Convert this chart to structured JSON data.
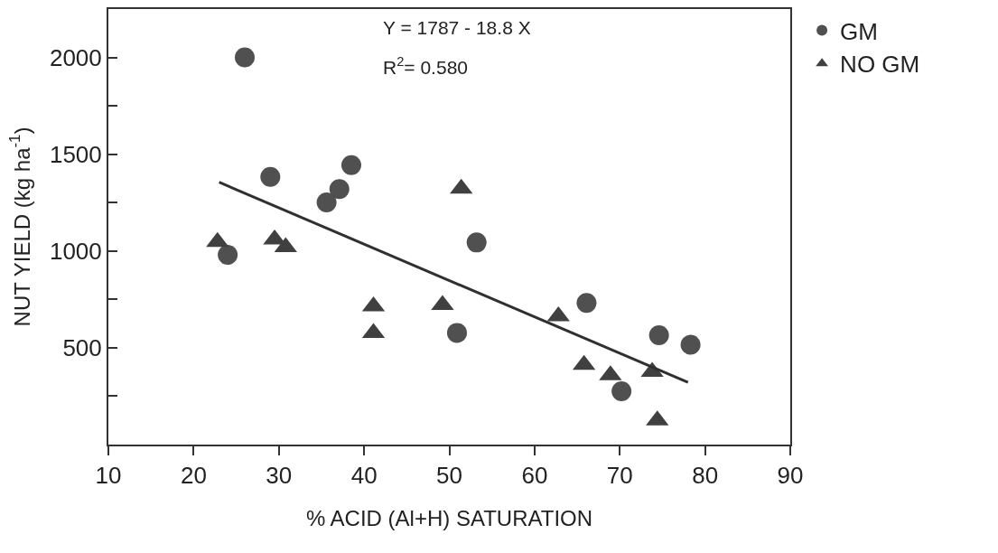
{
  "chart_data": {
    "type": "scatter",
    "xlabel": "% ACID (Al+H) SATURATION",
    "ylabel": "NUT YIELD (kg ha$^{-1}$)",
    "annotations": [
      "Y = 1787 - 18.8 X",
      "R$^{2}$= 0.580"
    ],
    "series": [
      {
        "name": "GM",
        "marker": "circle",
        "color": "#505050",
        "x": [
          26,
          29,
          38.5,
          37.1,
          35.6,
          24,
          53.2,
          50.9,
          66.1,
          74.6,
          78.3,
          70.2
        ],
        "values": [
          2000,
          1383,
          1444,
          1320,
          1251,
          980,
          1044,
          577,
          732,
          565,
          516,
          275
        ]
      },
      {
        "name": "NO GM",
        "marker": "triangle",
        "color": "#404040",
        "x": [
          22.8,
          29.5,
          30.8,
          51.4,
          41.1,
          41.1,
          49.2,
          62.8,
          65.8,
          68.9,
          73.8,
          74.4
        ],
        "values": [
          1047,
          1060,
          1020,
          1322,
          714,
          577,
          721,
          663,
          412,
          358,
          376,
          125
        ]
      },
      {
        "type": "line",
        "color": "#303030",
        "line_style": "solid",
        "marker": "none",
        "x": [
          23,
          78
        ],
        "values": [
          1355,
          321
        ]
      }
    ],
    "xlim": [
      10,
      90
    ],
    "xticks": [
      10,
      20,
      30,
      40,
      50,
      60,
      70,
      80,
      90
    ],
    "ylim": [
      0,
      2250
    ],
    "yticks": [
      {
        "value": 250,
        "label": null
      },
      500,
      {
        "value": 750,
        "label": null
      },
      1000,
      {
        "value": 1250,
        "label": null
      },
      1500,
      {
        "value": 1750,
        "label": null
      },
      2000
    ],
    "legend": "top right"
  }
}
